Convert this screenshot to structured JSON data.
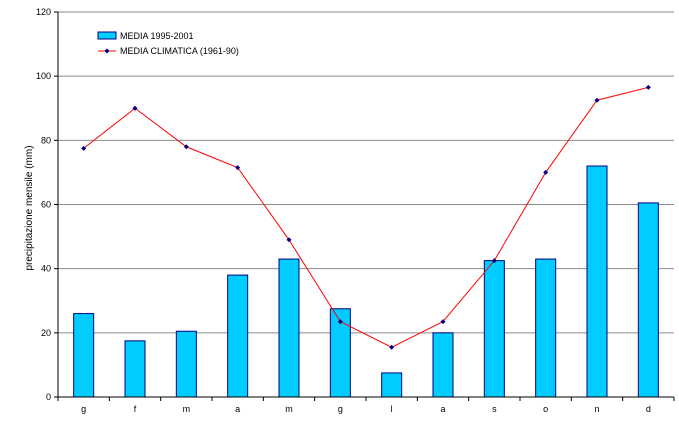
{
  "chart_data": {
    "type": "bar",
    "title": "",
    "xlabel": "",
    "ylabel": "precipitazione mensile (mm)",
    "ylim": [
      0,
      120
    ],
    "yticks": [
      0,
      20,
      40,
      60,
      80,
      100,
      120
    ],
    "grid": true,
    "legend_placement": "top-left",
    "categories": [
      "g",
      "f",
      "m",
      "a",
      "m",
      "g",
      "l",
      "a",
      "s",
      "o",
      "n",
      "d"
    ],
    "series": [
      {
        "name": "MEDIA 1995-2001",
        "type": "bar",
        "color": "#00ccff",
        "values": [
          26,
          17.5,
          20.5,
          38,
          43,
          27.5,
          7.5,
          20,
          42.5,
          43,
          72,
          60.5
        ]
      },
      {
        "name": "MEDIA CLIMATICA (1961-90)",
        "type": "line",
        "color": "#ff0000",
        "marker_color": "#000080",
        "values": [
          77.5,
          90,
          78,
          71.5,
          49,
          23.5,
          15.5,
          23.5,
          42.5,
          70,
          92.5,
          96.5
        ]
      }
    ]
  }
}
